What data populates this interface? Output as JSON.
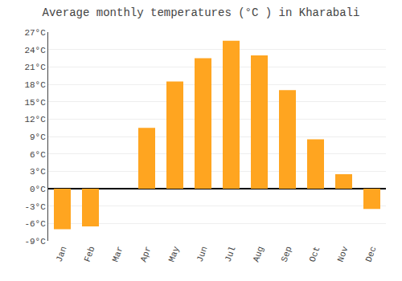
{
  "chart_data": {
    "type": "bar",
    "title": "Average monthly temperatures (°C ) in Kharabali",
    "categories": [
      "Jan",
      "Feb",
      "Mar",
      "Apr",
      "May",
      "Jun",
      "Jul",
      "Aug",
      "Sep",
      "Oct",
      "Nov",
      "Dec"
    ],
    "values": [
      -7,
      -6.5,
      0,
      10.5,
      18.5,
      22.5,
      25.5,
      23,
      17,
      8.5,
      2.5,
      -3.5
    ],
    "color": "#FFA520",
    "ylim": [
      -9,
      27
    ],
    "yticks": [
      {
        "value": -9,
        "label": "-9°C"
      },
      {
        "value": -6,
        "label": "-6°C"
      },
      {
        "value": -3,
        "label": "-3°C"
      },
      {
        "value": 0,
        "label": "0°C"
      },
      {
        "value": 3,
        "label": "3°C"
      },
      {
        "value": 6,
        "label": "6°C"
      },
      {
        "value": 9,
        "label": "9°C"
      },
      {
        "value": 12,
        "label": "12°C"
      },
      {
        "value": 15,
        "label": "15°C"
      },
      {
        "value": 18,
        "label": "18°C"
      },
      {
        "value": 21,
        "label": "21°C"
      },
      {
        "value": 24,
        "label": "24°C"
      },
      {
        "value": 27,
        "label": "27°C"
      }
    ],
    "grid": true
  }
}
